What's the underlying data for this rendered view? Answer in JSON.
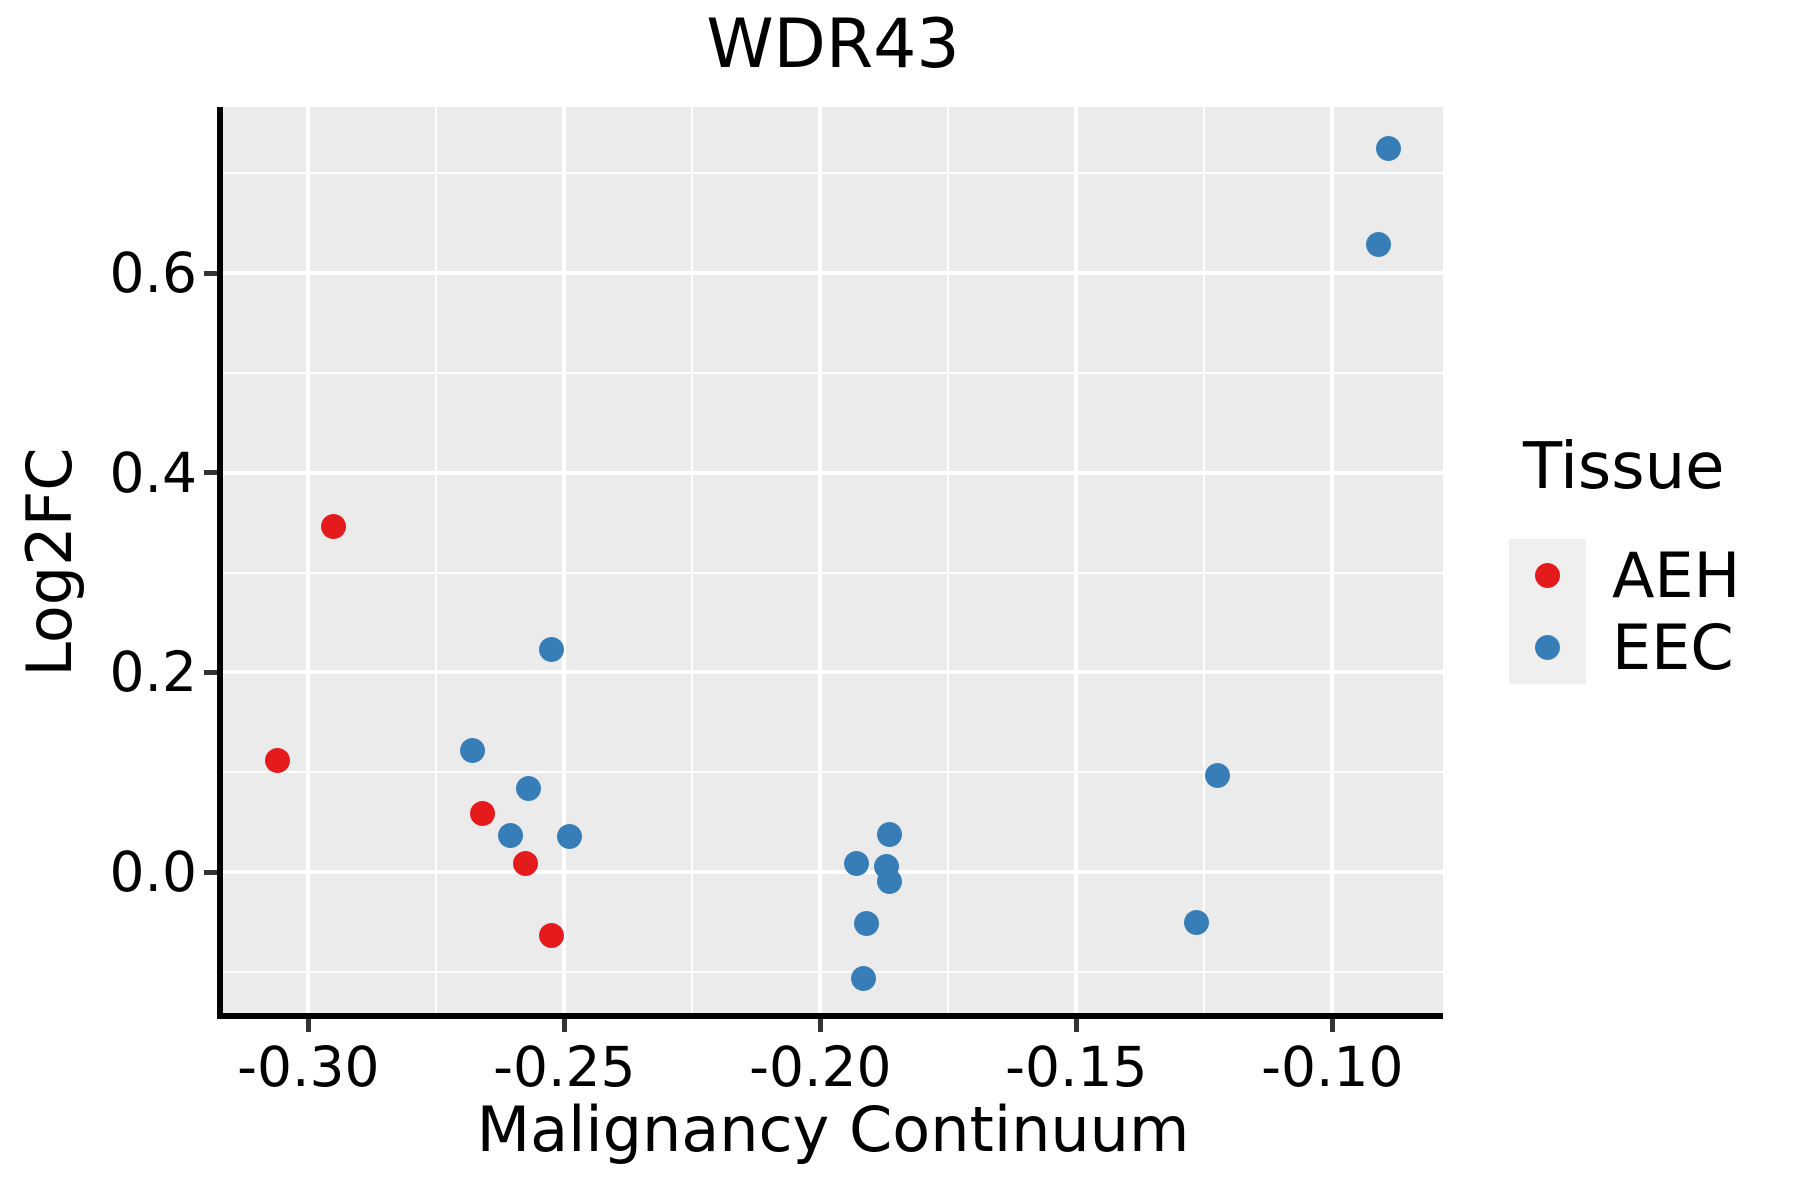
{
  "title": "WDR43",
  "colors": {
    "background": "#ffffff",
    "panel_background": "#ebebeb",
    "gridline": "#ffffff",
    "axis_line": "#000000",
    "tick_mark": "#333333",
    "text": "#000000",
    "legend_key_background": "#efefef",
    "aeh": "#e41a1c",
    "eec": "#377eb8"
  },
  "chart_data": {
    "type": "scatter",
    "title": "WDR43",
    "xlabel": "Malignancy Continuum",
    "ylabel": "Log2FC",
    "xlim": [
      -0.3167,
      -0.0784
    ],
    "ylim": [
      -0.141,
      0.767
    ],
    "grid": true,
    "x_major_ticks": [
      -0.3,
      -0.25,
      -0.2,
      -0.15,
      -0.1
    ],
    "x_tick_labels": [
      "-0.30",
      "-0.25",
      "-0.20",
      "-0.15",
      "-0.10"
    ],
    "x_minor_gridlines": [
      -0.275,
      -0.225,
      -0.175,
      -0.125
    ],
    "y_major_ticks": [
      0.0,
      0.2,
      0.4,
      0.6
    ],
    "y_tick_labels": [
      "0.0",
      "0.2",
      "0.4",
      "0.6"
    ],
    "y_minor_gridlines": [
      -0.1,
      0.1,
      0.3,
      0.5,
      0.7
    ],
    "legend_position": "right",
    "legend_title": "Tissue",
    "series": [
      {
        "name": "AEH",
        "color": "#e41a1c",
        "points": [
          [
            -0.295,
            0.346
          ],
          [
            -0.306,
            0.112
          ],
          [
            -0.266,
            0.059
          ],
          [
            -0.2575,
            0.009
          ],
          [
            -0.2525,
            -0.064
          ]
        ]
      },
      {
        "name": "EEC",
        "color": "#377eb8",
        "points": [
          [
            -0.2525,
            0.223
          ],
          [
            -0.268,
            0.122
          ],
          [
            -0.257,
            0.084
          ],
          [
            -0.2605,
            0.037
          ],
          [
            -0.249,
            0.036
          ],
          [
            -0.1865,
            0.038
          ],
          [
            -0.193,
            0.009
          ],
          [
            -0.187,
            0.006
          ],
          [
            -0.1865,
            -0.01
          ],
          [
            -0.191,
            -0.052
          ],
          [
            -0.1915,
            -0.107
          ],
          [
            -0.1225,
            0.0965
          ],
          [
            -0.1265,
            -0.051
          ],
          [
            -0.089,
            0.725
          ],
          [
            -0.091,
            0.629
          ]
        ]
      }
    ]
  }
}
